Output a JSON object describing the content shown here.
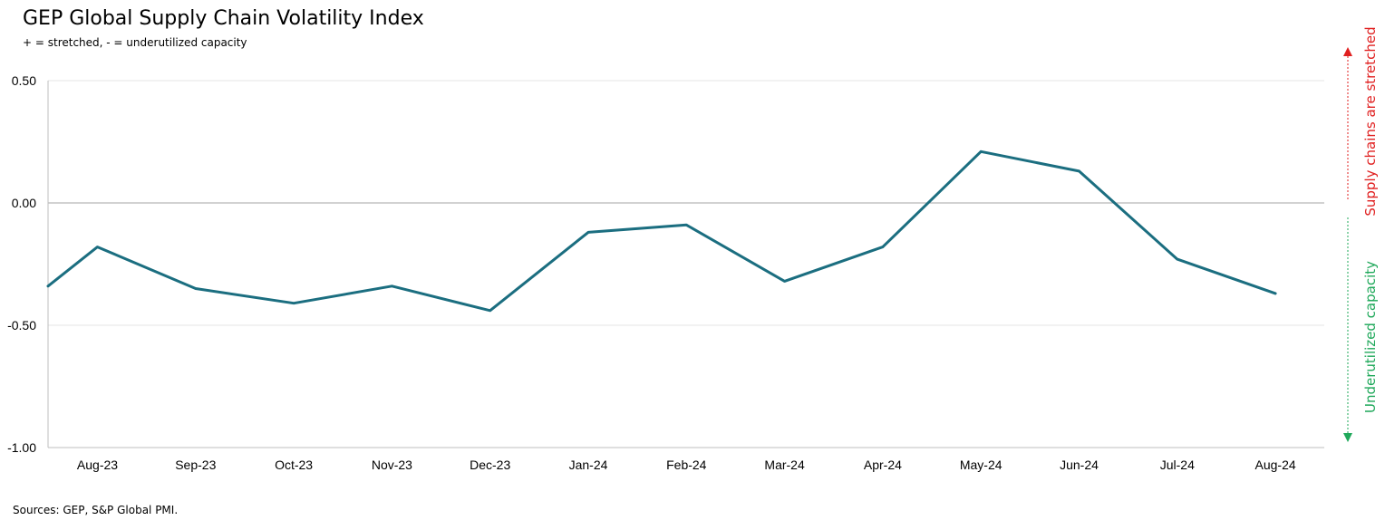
{
  "header": {
    "title": "GEP Global Supply Chain Volatility Index",
    "subtitle": "+ = stretched, - = underutilized capacity"
  },
  "footer": {
    "source": "Sources: GEP, S&P Global PMI."
  },
  "annotations": {
    "upper": "Supply chains are stretched",
    "lower": "Underutilized capacity",
    "upper_color": "#E02020",
    "lower_color": "#1FA85A"
  },
  "colors": {
    "line": "#1B6E80",
    "gridline": "#E4E4E4",
    "zero_line": "#A6A6A6",
    "axis_line": "#BFBFBF"
  },
  "chart_data": {
    "type": "line",
    "title": "GEP Global Supply Chain Volatility Index",
    "subtitle": "+ = stretched, - = underutilized capacity",
    "xlabel": "",
    "ylabel": "",
    "ylim": [
      -1.0,
      0.5
    ],
    "y_ticks": [
      0.5,
      0.0,
      -0.5,
      -1.0
    ],
    "y_tick_labels": [
      "0.50",
      "0.00",
      "-0.50",
      "-1.00"
    ],
    "categories": [
      "Aug-23",
      "Sep-23",
      "Oct-23",
      "Nov-23",
      "Dec-23",
      "Jan-24",
      "Feb-24",
      "Mar-24",
      "Apr-24",
      "May-24",
      "Jun-24",
      "Jul-24",
      "Aug-24"
    ],
    "series": [
      {
        "values": [
          -0.18,
          -0.35,
          -0.41,
          -0.34,
          -0.44,
          -0.12,
          -0.09,
          -0.32,
          -0.18,
          0.21,
          0.13,
          -0.23,
          -0.37
        ],
        "lead_in_value": -0.34
      }
    ],
    "grid": true,
    "legend": "none"
  }
}
